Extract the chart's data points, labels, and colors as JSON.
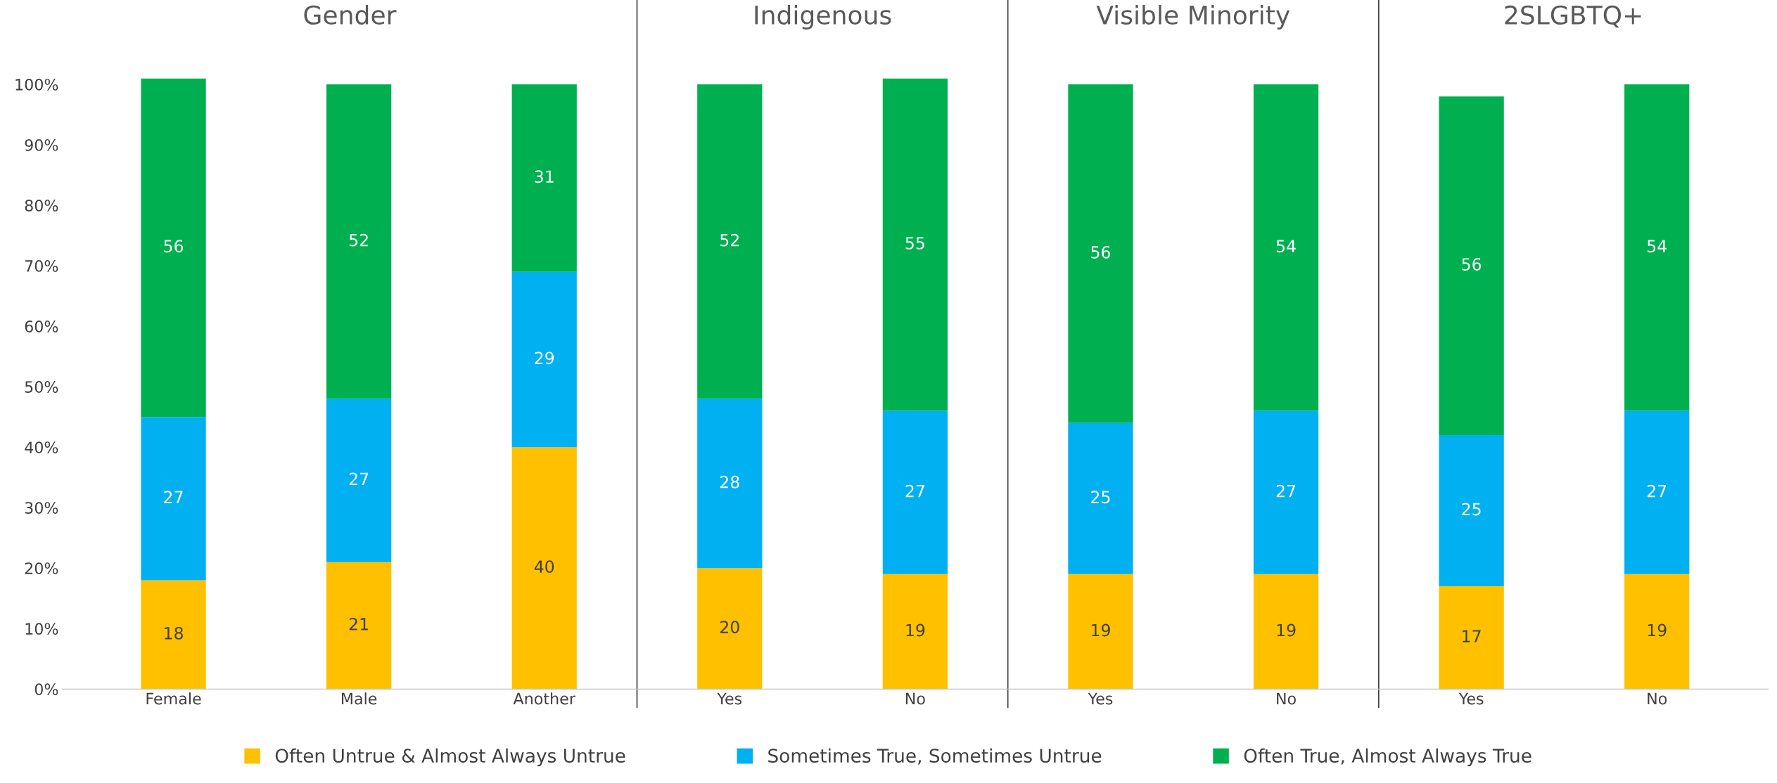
{
  "chart_data": {
    "type": "bar",
    "stacked": true,
    "categories": [
      "Female",
      "Male",
      "Another",
      "Yes",
      "No",
      "Yes",
      "No",
      "Yes",
      "No"
    ],
    "series": [
      {
        "name": "Often Untrue & Almost Always Untrue",
        "color": "#ffc000",
        "values": [
          18,
          21,
          40,
          20,
          19,
          19,
          19,
          17,
          19
        ]
      },
      {
        "name": "Sometimes True, Sometimes Untrue",
        "color": "#00b0f0",
        "values": [
          27,
          27,
          29,
          28,
          27,
          25,
          27,
          25,
          27
        ]
      },
      {
        "name": "Often True, Almost Always True",
        "color": "#00b050",
        "values": [
          56,
          52,
          31,
          52,
          55,
          56,
          54,
          56,
          54
        ]
      }
    ],
    "data_labels": true,
    "ylim": [
      0,
      101
    ],
    "yticks": [
      {
        "value": 0,
        "label": "0%"
      },
      {
        "value": 10,
        "label": "10%"
      },
      {
        "value": 20,
        "label": "20%"
      },
      {
        "value": 30,
        "label": "30%"
      },
      {
        "value": 40,
        "label": "40%"
      },
      {
        "value": 50,
        "label": "50%"
      },
      {
        "value": 60,
        "label": "60%"
      },
      {
        "value": 70,
        "label": "70%"
      },
      {
        "value": 80,
        "label": "80%"
      },
      {
        "value": 90,
        "label": "90%"
      },
      {
        "value": 100,
        "label": "100%"
      }
    ],
    "annotations": [
      "Gender",
      "Indigenous",
      "Visible Minority",
      "2SLGBTQ+"
    ],
    "grid": false,
    "legend": "bottom"
  }
}
